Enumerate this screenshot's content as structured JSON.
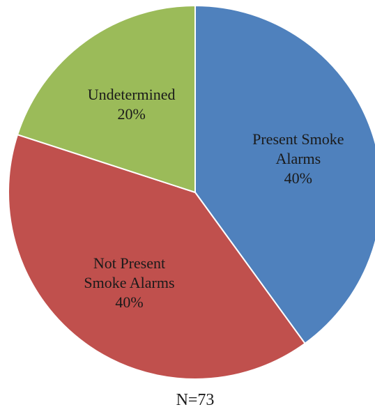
{
  "chart_data": {
    "type": "pie",
    "slices": [
      {
        "label_lines": [
          "Present Smoke",
          "Alarms"
        ],
        "value": 40,
        "value_label": "40%",
        "color": "#4f81bd"
      },
      {
        "label_lines": [
          "Not Present",
          "Smoke Alarms"
        ],
        "value": 40,
        "value_label": "40%",
        "color": "#c0504d"
      },
      {
        "label_lines": [
          "Undetermined"
        ],
        "value": 20,
        "value_label": "20%",
        "color": "#9bbb59"
      }
    ],
    "note": "N=73"
  }
}
